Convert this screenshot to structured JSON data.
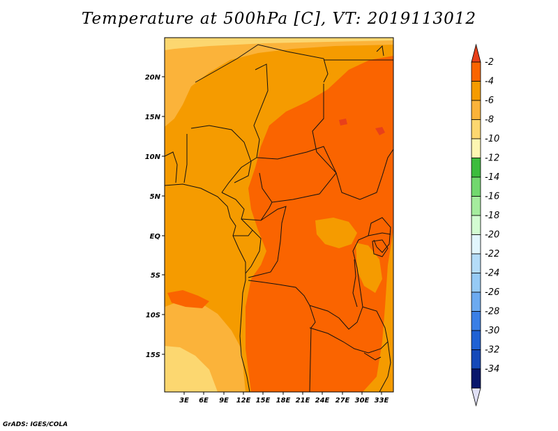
{
  "title": "Temperature at 500hPa [C], VT: 2019113012",
  "credit": "GrADS: IGES/COLA",
  "map": {
    "x_ticks": [
      "3E",
      "6E",
      "9E",
      "12E",
      "15E",
      "18E",
      "21E",
      "24E",
      "27E",
      "30E",
      "33E"
    ],
    "y_ticks": [
      "20N",
      "15N",
      "10N",
      "5N",
      "EQ",
      "5S",
      "10S",
      "15S"
    ]
  },
  "colorbar": {
    "labels": [
      "-2",
      "-4",
      "-6",
      "-8",
      "-10",
      "-12",
      "-14",
      "-16",
      "-18",
      "-20",
      "-22",
      "-24",
      "-26",
      "-28",
      "-30",
      "-32",
      "-34"
    ],
    "colors": [
      "#e8401a",
      "#fa6400",
      "#f59b00",
      "#fbb33a",
      "#fcd770",
      "#fdf6b2",
      "#3cbc3d",
      "#72d86e",
      "#a5ec9e",
      "#d3fcd2",
      "#e2f6fd",
      "#b4dcf8",
      "#96caf5",
      "#6caaf0",
      "#3a7fe6",
      "#1f61d4",
      "#1549b9",
      "#08166b",
      "#e0e0f6"
    ]
  }
}
